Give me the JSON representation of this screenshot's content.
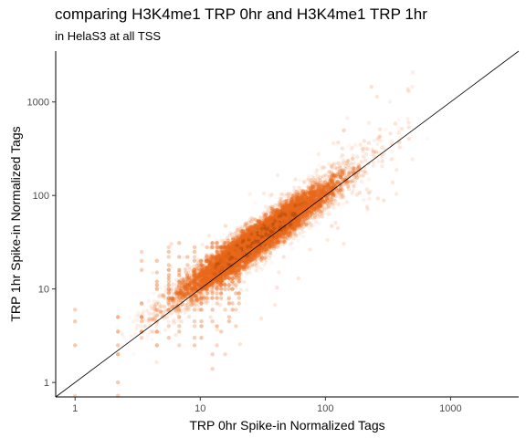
{
  "chart_data": {
    "type": "scatter",
    "title": "comparing H3K4me1 TRP 0hr and H3K4me1 TRP 1hr",
    "subtitle": "in HelaS3 at all TSS",
    "xlabel": "TRP 0hr Spike-in Normalized Tags",
    "ylabel": "TRP 1hr Spike-in Normalized Tags",
    "x_scale": "log10",
    "y_scale": "log10",
    "xlim": [
      0.7,
      3500
    ],
    "ylim": [
      0.7,
      3500
    ],
    "x_ticks": [
      1,
      10,
      100,
      1000
    ],
    "y_ticks": [
      1,
      10,
      100,
      1000
    ],
    "x_tick_labels": [
      "1",
      "10",
      "100",
      "1000"
    ],
    "y_tick_labels": [
      "1",
      "10",
      "100",
      "1000"
    ],
    "reference_line": "y = x",
    "point_color": "#e8681a",
    "dense_color": "#b84d0c",
    "grid": false,
    "cluster": {
      "center": [
        30,
        35
      ],
      "n_points": 4200
    }
  }
}
